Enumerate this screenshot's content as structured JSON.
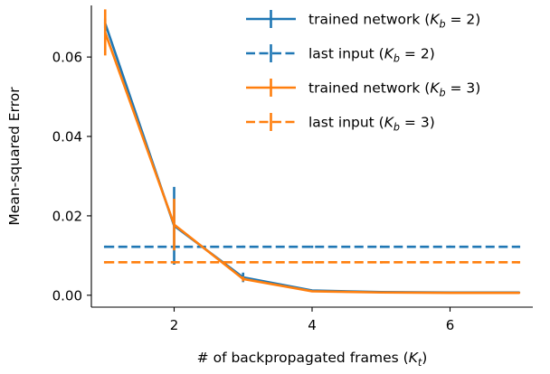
{
  "chart_data": {
    "type": "line",
    "xlabel": "# of backpropagated frames (K_t)",
    "ylabel": "Mean-squared Error",
    "xlim": [
      0.8,
      7.2
    ],
    "ylim": [
      -0.003,
      0.073
    ],
    "xticks": [
      "2",
      "4",
      "6"
    ],
    "yticks": [
      "0.00",
      "0.02",
      "0.04",
      "0.06"
    ],
    "legend_placement": "top-right",
    "grid": false,
    "series": [
      {
        "name": "trained network (K_b = 2)",
        "color": "#1f77b4",
        "style": "solid",
        "x": [
          1,
          2,
          3,
          4,
          5,
          6,
          7
        ],
        "y": [
          0.0685,
          0.0175,
          0.0045,
          0.0012,
          0.0008,
          0.0007,
          0.0007
        ],
        "err": [
          0.0012,
          0.0098,
          0.0012,
          0.0002,
          0.0001,
          0.0001,
          0.0001
        ]
      },
      {
        "name": "last input (K_b = 2)",
        "color": "#1f77b4",
        "style": "dashed",
        "x": [
          1,
          2,
          3,
          4,
          5,
          6,
          7
        ],
        "y": [
          0.0122,
          0.0122,
          0.0122,
          0.0122,
          0.0122,
          0.0122,
          0.0122
        ],
        "err": [
          0.0003,
          0.0003,
          0.0003,
          0.0003,
          0.0003,
          0.0003,
          0.0003
        ]
      },
      {
        "name": "trained network (K_b = 3)",
        "color": "#ff7f0e",
        "style": "solid",
        "x": [
          1,
          2,
          3,
          4,
          5,
          6,
          7
        ],
        "y": [
          0.0662,
          0.0178,
          0.0041,
          0.001,
          0.0007,
          0.0006,
          0.0006
        ],
        "err": [
          0.0058,
          0.0065,
          0.0006,
          0.0002,
          0.0001,
          0.0001,
          0.0001
        ]
      },
      {
        "name": "last input (K_b = 3)",
        "color": "#ff7f0e",
        "style": "dashed",
        "x": [
          1,
          2,
          3,
          4,
          5,
          6,
          7
        ],
        "y": [
          0.0083,
          0.0083,
          0.0083,
          0.0083,
          0.0083,
          0.0083,
          0.0083
        ],
        "err": [
          0.0003,
          0.0003,
          0.0003,
          0.0003,
          0.0003,
          0.0003,
          0.0003
        ]
      }
    ]
  }
}
